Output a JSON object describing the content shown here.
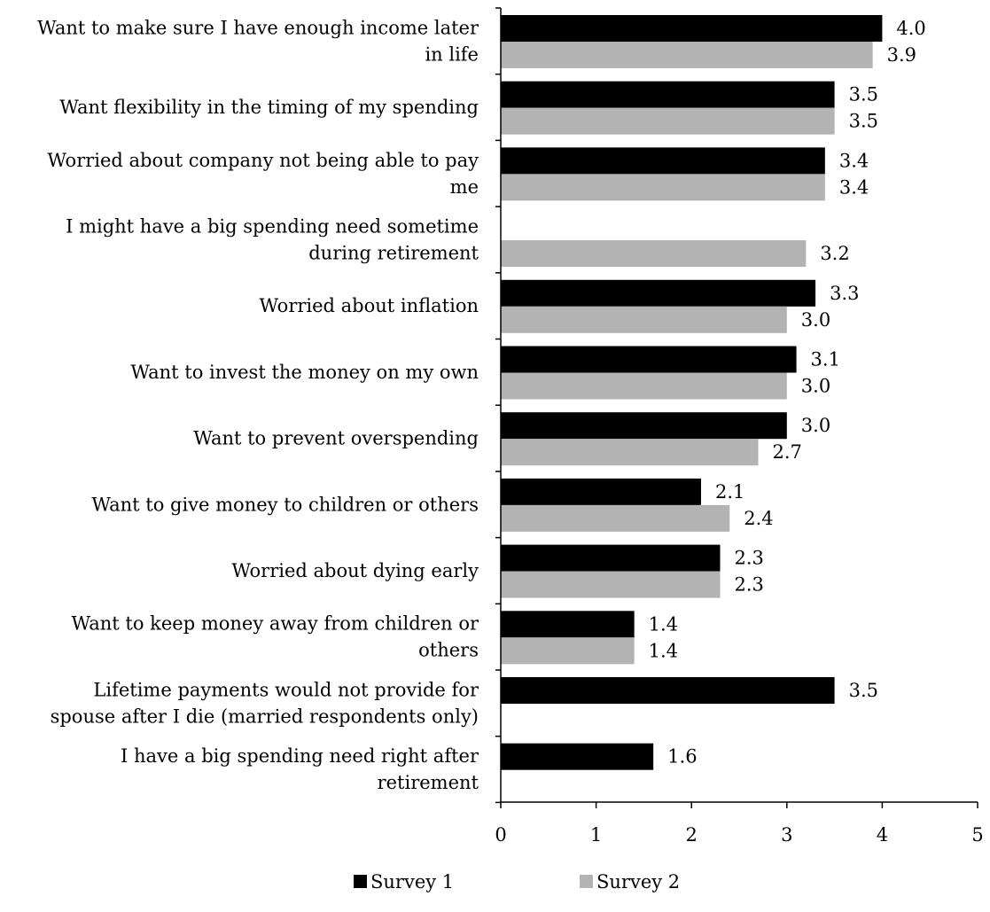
{
  "chart_data": {
    "type": "bar",
    "orientation": "horizontal",
    "categories": [
      [
        "Want to make sure I have enough income later",
        "in life"
      ],
      [
        "Want flexibility in the timing of my spending"
      ],
      [
        "Worried about company not being able to pay",
        "me"
      ],
      [
        "I might have a big spending need sometime",
        "during retirement"
      ],
      [
        "Worried about inflation"
      ],
      [
        "Want to invest the money on my own"
      ],
      [
        "Want to prevent overspending"
      ],
      [
        "Want to give money to children or others"
      ],
      [
        "Worried about dying early"
      ],
      [
        "Want to keep money away from children or",
        "others"
      ],
      [
        "Lifetime payments would not provide for",
        "spouse after I die (married respondents only)"
      ],
      [
        "I have a big spending need right after",
        "retirement"
      ]
    ],
    "series": [
      {
        "name": "Survey 1",
        "color": "#000000",
        "values": [
          4.0,
          3.5,
          3.4,
          null,
          3.3,
          3.1,
          3.0,
          2.1,
          2.3,
          1.4,
          3.5,
          1.6
        ],
        "labels": [
          "4.0",
          "3.5",
          "3.4",
          null,
          "3.3",
          "3.1",
          "3.0",
          "2.1",
          "2.3",
          "1.4",
          "3.5",
          "1.6"
        ]
      },
      {
        "name": "Survey 2",
        "color": "#b3b3b3",
        "values": [
          3.9,
          3.5,
          3.4,
          3.2,
          3.0,
          3.0,
          2.7,
          2.4,
          2.3,
          1.4,
          null,
          null
        ],
        "labels": [
          "3.9",
          "3.5",
          "3.4",
          "3.2",
          "3.0",
          "3.0",
          "2.7",
          "2.4",
          "2.3",
          "1.4",
          null,
          null
        ]
      }
    ],
    "xlim": [
      0,
      5
    ],
    "xticks": [
      "0",
      "1",
      "2",
      "3",
      "4",
      "5"
    ],
    "xlabel": "",
    "ylabel": "",
    "title": "",
    "grid": false,
    "legend": "bottom"
  }
}
